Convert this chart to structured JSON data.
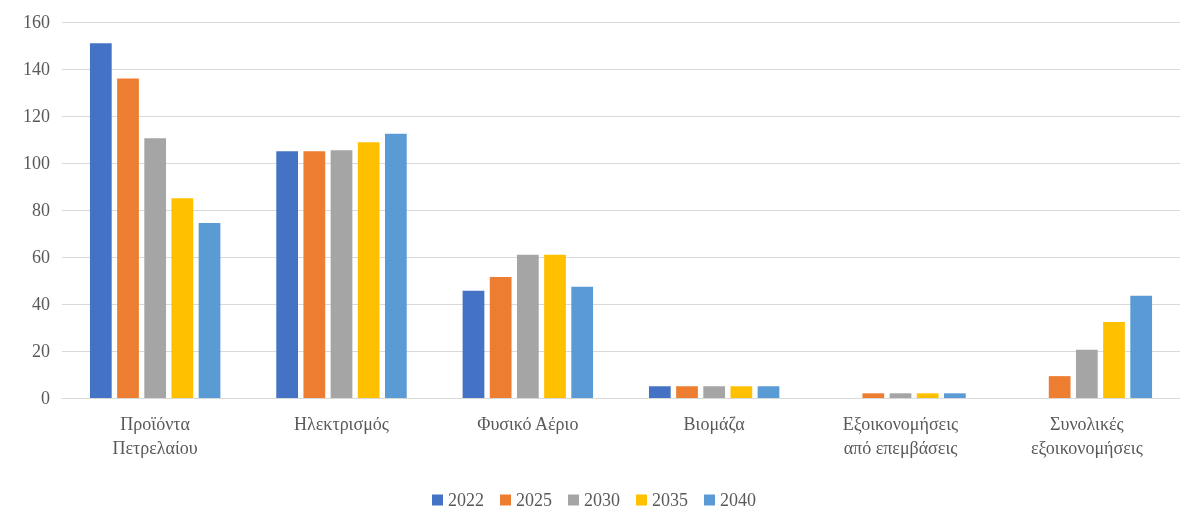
{
  "chart_data": {
    "type": "bar",
    "categories": [
      "Προϊόντα\nΠετρελαίου",
      "Ηλεκτρισμός",
      "Φυσικό Αέριο",
      "Βιομάζα",
      "Εξοικονομήσεις\nαπό επεμβάσεις",
      "Συνολικές\nεξοικονομήσεις"
    ],
    "series": [
      {
        "name": "2022",
        "color": "#4472c4",
        "values": [
          151,
          105,
          45.6,
          5,
          null,
          null
        ]
      },
      {
        "name": "2025",
        "color": "#ed7d31",
        "values": [
          136,
          105,
          51.5,
          5,
          2,
          9.3
        ]
      },
      {
        "name": "2030",
        "color": "#a5a5a5",
        "values": [
          110.5,
          105.4,
          61,
          5,
          2,
          20.5
        ]
      },
      {
        "name": "2035",
        "color": "#ffc000",
        "values": [
          85,
          108.8,
          61,
          5,
          2,
          32.3
        ]
      },
      {
        "name": "2040",
        "color": "#5b9bd5",
        "values": [
          74.5,
          112.5,
          47.3,
          5,
          2,
          43.5
        ]
      }
    ],
    "ylim": [
      0,
      160
    ],
    "yticks": [
      0,
      20,
      40,
      60,
      80,
      100,
      120,
      140,
      160
    ],
    "grid": "y",
    "legend": "bottom"
  }
}
